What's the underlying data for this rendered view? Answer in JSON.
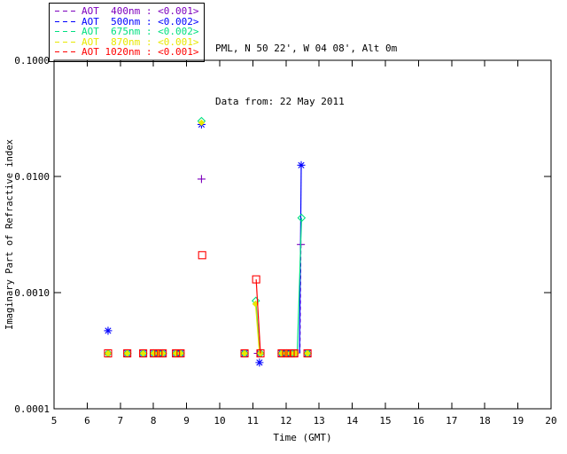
{
  "header": {
    "location_line": "PML, N 50 22', W 04 08', Alt 0m",
    "date_line": "Data from: 22 May 2011"
  },
  "chart_data": {
    "type": "scatter",
    "title": "",
    "xlabel": "Time (GMT)",
    "ylabel": "Imaginary Part of Refractive index",
    "x_scale": "linear",
    "y_scale": "log",
    "xlim": [
      5,
      20
    ],
    "ylim": [
      0.0001,
      0.1
    ],
    "x_ticks": [
      5,
      6,
      7,
      8,
      9,
      10,
      11,
      12,
      13,
      14,
      15,
      16,
      17,
      18,
      19,
      20
    ],
    "y_ticks": [
      0.0001,
      0.001,
      0.01,
      0.1
    ],
    "y_tick_labels": [
      "0.0001",
      "0.0010",
      "0.0100",
      "0.1000"
    ],
    "grid": false,
    "legend_position": "top-left-outside",
    "axis_color": "#000000",
    "background": "#ffffff",
    "series": [
      {
        "name": "AOT 400nm",
        "legend_label": "AOT  400nm : <0.001>",
        "aot_value": "<0.001>",
        "color": "#7d00bd",
        "marker": "plus",
        "dash_segments": true,
        "points": [
          [
            9.45,
            0.0095
          ],
          [
            11.15,
            0.0003
          ],
          [
            12.45,
            0.0026
          ]
        ],
        "segments": [
          [
            [
              12.45,
              0.0026
            ],
            [
              12.42,
              0.0003
            ]
          ]
        ]
      },
      {
        "name": "AOT 500nm",
        "legend_label": "AOT  500nm : <0.002>",
        "aot_value": "<0.002>",
        "color": "#0000ff",
        "marker": "asterisk",
        "dash_segments": false,
        "points": [
          [
            6.63,
            0.00047
          ],
          [
            7.21,
            0.0003
          ],
          [
            7.69,
            0.0003
          ],
          [
            8.01,
            0.0003
          ],
          [
            8.15,
            0.0003
          ],
          [
            8.28,
            0.0003
          ],
          [
            8.68,
            0.0003
          ],
          [
            8.82,
            0.0003
          ],
          [
            9.45,
            0.028
          ],
          [
            10.75,
            0.0003
          ],
          [
            11.2,
            0.00025
          ],
          [
            11.87,
            0.0003
          ],
          [
            12.01,
            0.0003
          ],
          [
            12.14,
            0.0003
          ],
          [
            12.25,
            0.0003
          ],
          [
            12.46,
            0.0125
          ],
          [
            12.65,
            0.0003
          ]
        ],
        "segments": [
          [
            [
              12.46,
              0.0125
            ],
            [
              12.41,
              0.0003
            ]
          ]
        ]
      },
      {
        "name": "AOT 675nm",
        "legend_label": "AOT  675nm : <0.002>",
        "aot_value": "<0.002>",
        "color": "#00e080",
        "marker": "diamond",
        "dash_segments": false,
        "points": [
          [
            6.63,
            0.0003
          ],
          [
            7.21,
            0.0003
          ],
          [
            7.69,
            0.0003
          ],
          [
            8.01,
            0.0003
          ],
          [
            8.15,
            0.0003
          ],
          [
            8.28,
            0.0003
          ],
          [
            8.68,
            0.0003
          ],
          [
            8.82,
            0.0003
          ],
          [
            9.45,
            0.03
          ],
          [
            10.75,
            0.0003
          ],
          [
            11.09,
            0.00085
          ],
          [
            11.23,
            0.0003
          ],
          [
            11.87,
            0.0003
          ],
          [
            12.01,
            0.0003
          ],
          [
            12.14,
            0.0003
          ],
          [
            12.25,
            0.0003
          ],
          [
            12.47,
            0.0044
          ],
          [
            12.65,
            0.0003
          ]
        ],
        "segments": [
          [
            [
              11.09,
              0.00085
            ],
            [
              11.21,
              0.0003
            ]
          ],
          [
            [
              12.47,
              0.0044
            ],
            [
              12.34,
              0.0003
            ]
          ]
        ]
      },
      {
        "name": "AOT 870nm",
        "legend_label": "AOT  870nm : <0.001>",
        "aot_value": "<0.001>",
        "color": "#e8e800",
        "marker": "diamond-fill",
        "dash_segments": false,
        "points": [
          [
            6.63,
            0.0003
          ],
          [
            7.21,
            0.0003
          ],
          [
            7.69,
            0.0003
          ],
          [
            8.01,
            0.0003
          ],
          [
            8.15,
            0.0003
          ],
          [
            8.28,
            0.0003
          ],
          [
            8.68,
            0.0003
          ],
          [
            8.82,
            0.0003
          ],
          [
            9.45,
            0.029
          ],
          [
            10.75,
            0.0003
          ],
          [
            11.08,
            0.0008
          ],
          [
            11.23,
            0.0003
          ],
          [
            11.87,
            0.0003
          ],
          [
            12.01,
            0.0003
          ],
          [
            12.14,
            0.0003
          ],
          [
            12.25,
            0.0003
          ],
          [
            12.3,
            0.0003
          ],
          [
            12.65,
            0.0003
          ]
        ],
        "segments": [
          [
            [
              11.08,
              0.0008
            ],
            [
              11.2,
              0.0003
            ]
          ]
        ]
      },
      {
        "name": "AOT 1020nm",
        "legend_label": "AOT 1020nm : <0.001>",
        "aot_value": "<0.001>",
        "color": "#ff0000",
        "marker": "square",
        "dash_segments": false,
        "points": [
          [
            6.63,
            0.0003
          ],
          [
            7.21,
            0.0003
          ],
          [
            7.69,
            0.0003
          ],
          [
            8.01,
            0.0003
          ],
          [
            8.15,
            0.0003
          ],
          [
            8.28,
            0.0003
          ],
          [
            8.68,
            0.0003
          ],
          [
            8.82,
            0.0003
          ],
          [
            9.47,
            0.0021
          ],
          [
            10.75,
            0.0003
          ],
          [
            11.1,
            0.0013
          ],
          [
            11.23,
            0.0003
          ],
          [
            11.87,
            0.0003
          ],
          [
            12.01,
            0.0003
          ],
          [
            12.14,
            0.0003
          ],
          [
            12.25,
            0.0003
          ],
          [
            12.65,
            0.0003
          ]
        ],
        "segments": [
          [
            [
              11.1,
              0.0013
            ],
            [
              11.23,
              0.0003
            ]
          ]
        ]
      }
    ]
  }
}
